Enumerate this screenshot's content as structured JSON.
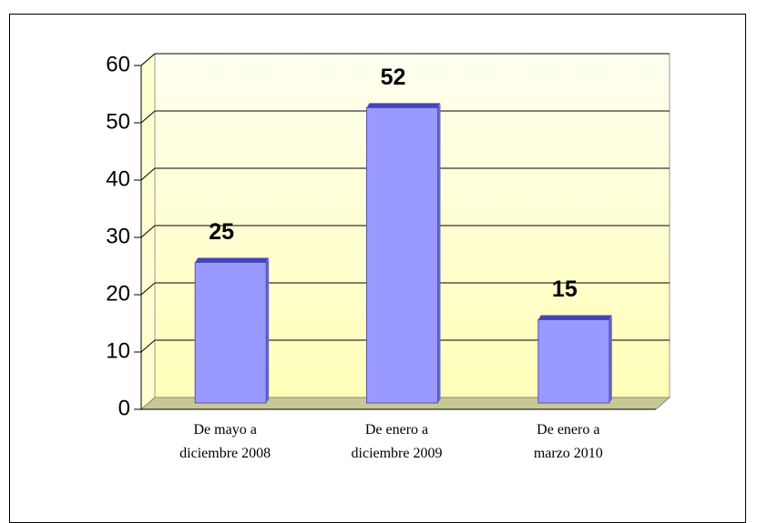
{
  "chart_data": {
    "type": "bar",
    "categories": [
      "De mayo a diciembre 2008",
      "De enero a diciembre 2009",
      "De enero a marzo 2010"
    ],
    "values": [
      25,
      52,
      15
    ],
    "color": "#9999ff",
    "ylim": [
      0,
      60
    ],
    "yticks": [
      0,
      10,
      20,
      30,
      40,
      50,
      60
    ],
    "grid": true
  }
}
